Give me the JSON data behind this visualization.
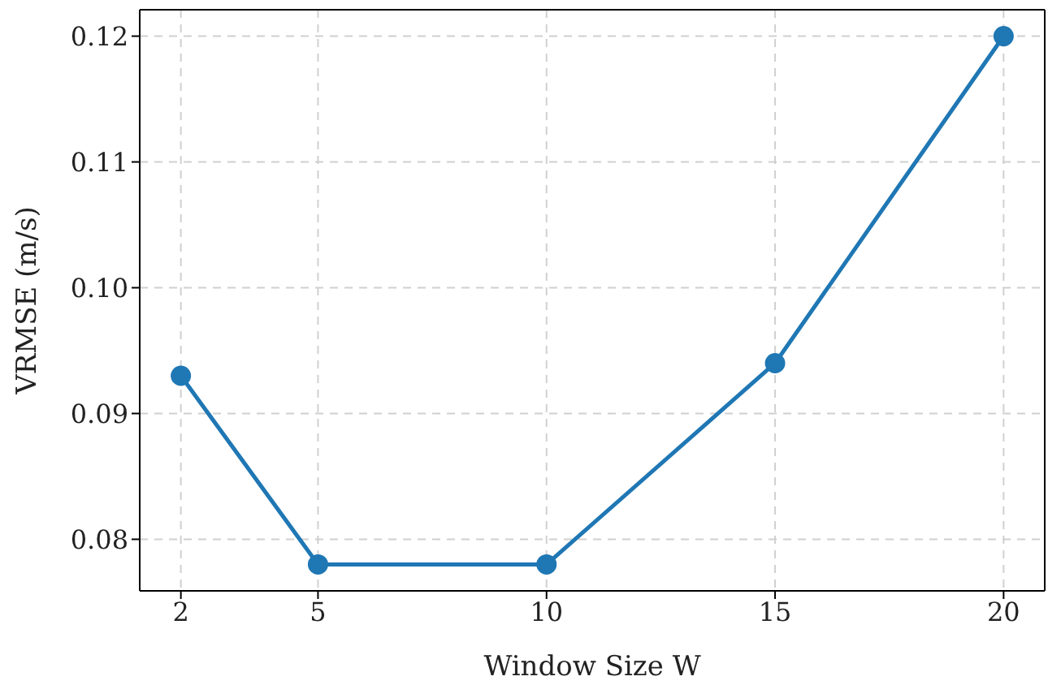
{
  "chart_data": {
    "type": "line",
    "xlabel": "Window Size W",
    "ylabel": "VRMSE (m/s)",
    "x": [
      2,
      5,
      10,
      15,
      20
    ],
    "series": [
      {
        "color": "#1f77b4",
        "values": [
          0.093,
          0.078,
          0.078,
          0.094,
          0.12
        ]
      }
    ],
    "xlim": [
      1.1,
      20.9
    ],
    "xticks": [
      2,
      5,
      10,
      15,
      20
    ],
    "ylim": [
      0.0759,
      0.1221
    ],
    "yticks": [
      {
        "value": 0.08,
        "label": "0.08"
      },
      {
        "value": 0.09,
        "label": "0.09"
      },
      {
        "value": 0.1,
        "label": "0.10"
      },
      {
        "value": 0.11,
        "label": "0.11"
      },
      {
        "value": 0.12,
        "label": "0.12"
      }
    ],
    "grid": true,
    "marker": "circle",
    "line_style": "solid"
  }
}
